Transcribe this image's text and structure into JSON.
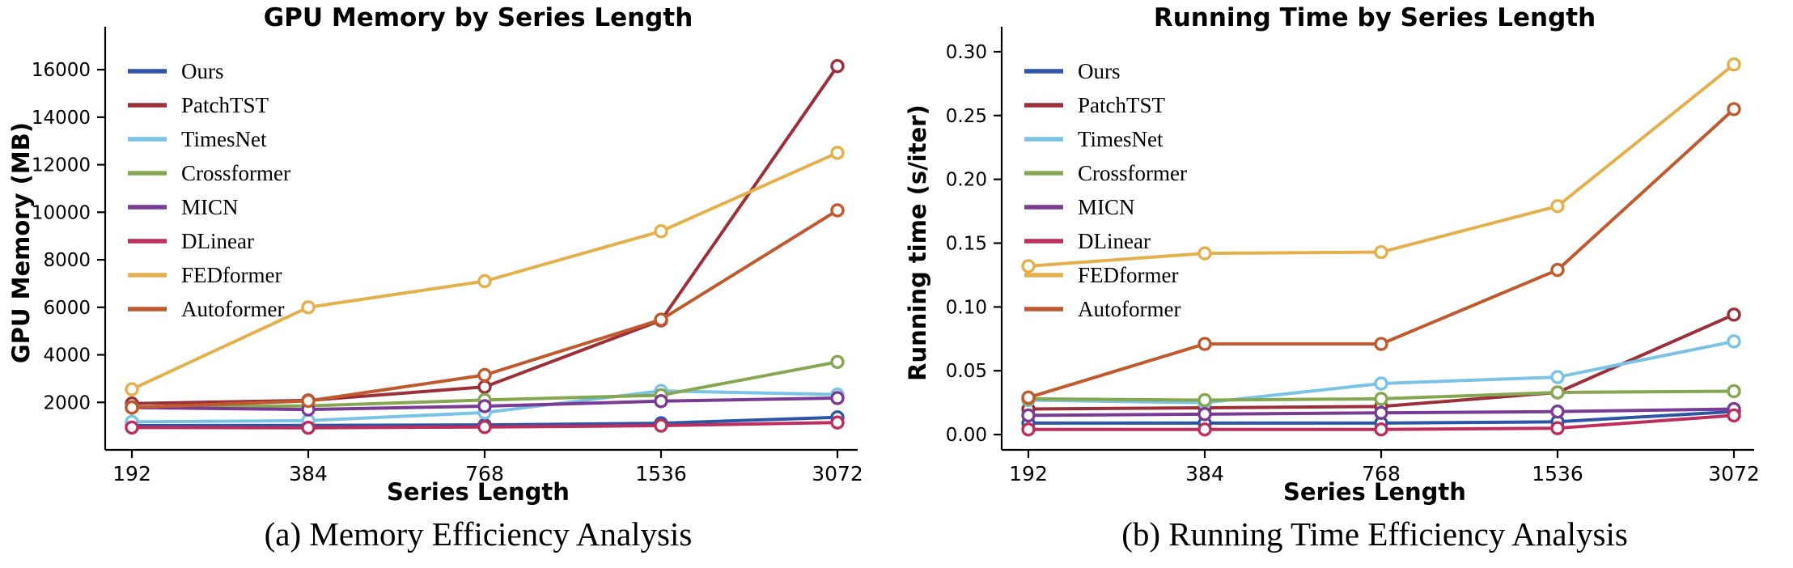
{
  "figure": {
    "background": "#ffffff"
  },
  "chart_data": [
    {
      "type": "line",
      "title": "GPU Memory by Series Length",
      "xlabel": "Series Length",
      "ylabel": "GPU Memory (MB)",
      "caption": "(a) Memory Efficiency Analysis",
      "categories": [
        "192",
        "384",
        "768",
        "1536",
        "3072"
      ],
      "ylim": [
        0,
        17400
      ],
      "yticks": [
        2000,
        4000,
        6000,
        8000,
        10000,
        12000,
        14000,
        16000
      ],
      "ytick_decimals": 0,
      "grid": false,
      "legend_position": "upper-left",
      "series": [
        {
          "name": "Ours",
          "color": "#2d55a5",
          "values": [
            1020,
            1030,
            1050,
            1120,
            1370
          ]
        },
        {
          "name": "PatchTST",
          "color": "#9c3038",
          "values": [
            1950,
            2080,
            2650,
            5450,
            16150
          ]
        },
        {
          "name": "TimesNet",
          "color": "#79c3e6",
          "values": [
            1180,
            1230,
            1570,
            2480,
            2330
          ]
        },
        {
          "name": "Crossformer",
          "color": "#85a752",
          "values": [
            1800,
            1850,
            2100,
            2300,
            3700
          ]
        },
        {
          "name": "MICN",
          "color": "#7a3b94",
          "values": [
            1780,
            1700,
            1840,
            2050,
            2180
          ]
        },
        {
          "name": "DLinear",
          "color": "#bd2e5f",
          "values": [
            940,
            930,
            960,
            1020,
            1150
          ]
        },
        {
          "name": "FEDformer",
          "color": "#e3b04b",
          "values": [
            2550,
            6000,
            7100,
            9200,
            12500
          ]
        },
        {
          "name": "Autoformer",
          "color": "#c05a2e",
          "values": [
            1780,
            2060,
            3150,
            5480,
            10080
          ]
        }
      ]
    },
    {
      "type": "line",
      "title": "Running Time by Series Length",
      "xlabel": "Series Length",
      "ylabel": "Running time (s/iter)",
      "caption": "(b) Running Time Efficiency Analysis",
      "categories": [
        "192",
        "384",
        "768",
        "1536",
        "3072"
      ],
      "ylim": [
        -0.012,
        0.312
      ],
      "yticks": [
        0.0,
        0.05,
        0.1,
        0.15,
        0.2,
        0.25,
        0.3
      ],
      "ytick_decimals": 2,
      "grid": false,
      "legend_position": "upper-left",
      "series": [
        {
          "name": "Ours",
          "color": "#2d55a5",
          "values": [
            0.009,
            0.009,
            0.009,
            0.01,
            0.018
          ]
        },
        {
          "name": "PatchTST",
          "color": "#9c3038",
          "values": [
            0.02,
            0.021,
            0.022,
            0.033,
            0.094
          ]
        },
        {
          "name": "TimesNet",
          "color": "#79c3e6",
          "values": [
            0.027,
            0.025,
            0.04,
            0.045,
            0.073
          ]
        },
        {
          "name": "Crossformer",
          "color": "#85a752",
          "values": [
            0.028,
            0.027,
            0.028,
            0.033,
            0.034
          ]
        },
        {
          "name": "MICN",
          "color": "#7a3b94",
          "values": [
            0.015,
            0.016,
            0.017,
            0.018,
            0.02
          ]
        },
        {
          "name": "DLinear",
          "color": "#bd2e5f",
          "values": [
            0.004,
            0.004,
            0.004,
            0.005,
            0.015
          ]
        },
        {
          "name": "FEDformer",
          "color": "#e3b04b",
          "values": [
            0.132,
            0.142,
            0.143,
            0.179,
            0.29
          ]
        },
        {
          "name": "Autoformer",
          "color": "#c05a2e",
          "values": [
            0.029,
            0.071,
            0.071,
            0.129,
            0.255
          ]
        }
      ]
    }
  ]
}
